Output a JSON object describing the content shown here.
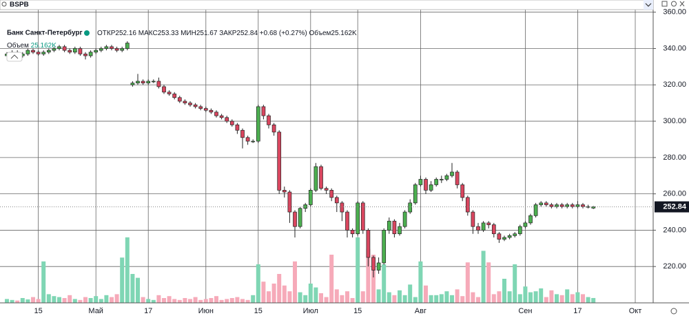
{
  "header": {
    "symbol": "BSPB"
  },
  "chart_data": {
    "type": "candlestick",
    "title": "Банк Санкт-Петербург",
    "legend": {
      "open": "ОТКР",
      "high": "МАКС",
      "low": "МИН",
      "close": "ЗАКР",
      "change": "+0.68 (+0.27%)",
      "volume": "Объем",
      "volume_value": "25.162K"
    },
    "categories": [
      null,
      null,
      null,
      null,
      null,
      null,
      "15",
      null,
      null,
      null,
      null,
      null,
      null,
      null,
      null,
      null,
      null,
      "Май",
      null,
      null,
      null,
      null,
      null,
      null,
      null,
      null,
      null,
      "17",
      null,
      null,
      null,
      null,
      null,
      null,
      null,
      null,
      null,
      null,
      "Июн",
      null,
      null,
      null,
      null,
      null,
      null,
      null,
      null,
      null,
      "15",
      null,
      null,
      null,
      null,
      null,
      null,
      null,
      null,
      null,
      "Июл",
      null,
      null,
      null,
      null,
      null,
      null,
      null,
      null,
      "15",
      null,
      null,
      null,
      null,
      null,
      null,
      null,
      null,
      null,
      null,
      null,
      "Авг",
      null,
      null,
      null,
      null,
      null,
      null,
      null,
      null,
      null,
      null,
      null,
      null,
      null,
      null,
      null,
      null,
      null,
      null,
      null,
      "Сен",
      null,
      null,
      null,
      null,
      null,
      null,
      null,
      null,
      null,
      "17",
      null,
      null,
      null,
      null,
      null,
      null,
      null,
      null,
      null,
      null,
      "Окт"
    ],
    "open": [
      336,
      337,
      338,
      336,
      337,
      339,
      338,
      337,
      338,
      339,
      340,
      341,
      339,
      338,
      340,
      337,
      336,
      338,
      339,
      340,
      341,
      340,
      339,
      340,
      320,
      321,
      322,
      321,
      322,
      322,
      319,
      316,
      315,
      313,
      311,
      310,
      309,
      308,
      307,
      306,
      305,
      303,
      302,
      300,
      298,
      295,
      291,
      289,
      289,
      308,
      303,
      298,
      294,
      262,
      261,
      250,
      242,
      252,
      254,
      262,
      275,
      263,
      262,
      258,
      255,
      250,
      240,
      238,
      255,
      240,
      225,
      218,
      222,
      240,
      245,
      238,
      242,
      250,
      255,
      265,
      268,
      262,
      265,
      268,
      268,
      270,
      272,
      265,
      258,
      250,
      242,
      240,
      244,
      243,
      238,
      235,
      236,
      237,
      238,
      242,
      244,
      248,
      254,
      255,
      254,
      253,
      254,
      253,
      254,
      253,
      254,
      253,
      252.16,
      null,
      null,
      null,
      null,
      null,
      null,
      null,
      null
    ],
    "high": [
      338,
      339,
      339,
      338,
      340,
      340,
      339,
      339,
      340,
      341,
      342,
      342,
      340,
      341,
      341,
      338,
      339,
      340,
      341,
      342,
      342,
      341,
      341,
      344,
      322,
      326,
      323,
      323,
      323,
      324,
      320,
      317,
      316,
      314,
      312,
      311,
      310,
      309,
      308,
      307,
      306,
      304,
      303,
      301,
      299,
      296,
      292,
      290,
      309,
      309,
      304,
      299,
      295,
      264,
      262,
      251,
      253,
      255,
      263,
      277,
      276,
      264,
      263,
      259,
      256,
      251,
      241,
      256,
      256,
      241,
      226,
      225,
      241,
      247,
      246,
      244,
      251,
      257,
      266,
      270,
      269,
      267,
      269,
      270,
      271,
      277,
      273,
      266,
      259,
      251,
      244,
      245,
      245,
      244,
      239,
      237,
      238,
      239,
      243,
      245,
      249,
      255,
      256,
      256,
      255,
      255,
      255,
      255,
      255,
      256,
      255,
      254,
      253.33,
      null,
      null,
      null,
      null,
      null,
      null,
      null,
      null
    ],
    "low": [
      335,
      336,
      335,
      335,
      336,
      337,
      336,
      336,
      337,
      338,
      339,
      338,
      337,
      337,
      336,
      334,
      335,
      337,
      338,
      339,
      339,
      338,
      338,
      339,
      319,
      320,
      320,
      320,
      321,
      318,
      315,
      314,
      312,
      310,
      309,
      308,
      307,
      306,
      305,
      304,
      302,
      301,
      299,
      297,
      293,
      285,
      287,
      288,
      288,
      301,
      296,
      292,
      260,
      258,
      244,
      236,
      241,
      250,
      253,
      261,
      262,
      260,
      256,
      250,
      245,
      236,
      236,
      237,
      238,
      220,
      214,
      216,
      221,
      238,
      236,
      237,
      241,
      249,
      254,
      264,
      260,
      261,
      264,
      266,
      267,
      269,
      263,
      256,
      248,
      238,
      238,
      239,
      241,
      236,
      233,
      234,
      235,
      236,
      237,
      241,
      243,
      247,
      253,
      253,
      252,
      252,
      252,
      252,
      252,
      252,
      252,
      252,
      251.67,
      null,
      null,
      null,
      null,
      null,
      null,
      null,
      null
    ],
    "close": [
      337,
      338,
      336,
      337,
      339,
      338,
      337,
      338,
      339,
      340,
      341,
      339,
      338,
      340,
      337,
      336,
      338,
      339,
      340,
      341,
      340,
      339,
      340,
      343,
      321,
      322,
      321,
      322,
      322,
      319,
      316,
      315,
      313,
      311,
      310,
      309,
      308,
      307,
      306,
      305,
      303,
      302,
      300,
      298,
      295,
      291,
      289,
      289,
      308,
      303,
      298,
      294,
      262,
      261,
      250,
      242,
      252,
      254,
      262,
      275,
      263,
      262,
      258,
      255,
      250,
      240,
      238,
      255,
      240,
      225,
      218,
      222,
      240,
      245,
      238,
      242,
      250,
      255,
      265,
      268,
      262,
      265,
      268,
      268,
      270,
      272,
      265,
      258,
      250,
      242,
      240,
      244,
      243,
      238,
      235,
      236,
      237,
      238,
      242,
      244,
      248,
      254,
      255,
      254,
      253,
      254,
      253,
      254,
      253,
      254,
      253,
      253,
      252.84,
      null,
      null,
      null,
      null,
      null,
      null,
      null,
      null
    ],
    "volume": [
      20,
      15,
      12,
      25,
      18,
      30,
      20,
      215,
      45,
      35,
      30,
      25,
      40,
      20,
      15,
      30,
      25,
      35,
      20,
      40,
      30,
      45,
      235,
      340,
      150,
      130,
      30,
      20,
      15,
      40,
      25,
      35,
      20,
      15,
      25,
      20,
      30,
      15,
      20,
      25,
      35,
      15,
      20,
      25,
      30,
      20,
      15,
      40,
      200,
      110,
      60,
      100,
      150,
      90,
      60,
      215,
      55,
      40,
      100,
      80,
      50,
      30,
      250,
      70,
      40,
      60,
      25,
      340,
      60,
      280,
      250,
      70,
      200,
      55,
      40,
      65,
      40,
      95,
      30,
      215,
      90,
      40,
      40,
      45,
      60,
      40,
      70,
      35,
      210,
      55,
      30,
      270,
      210,
      45,
      60,
      125,
      60,
      200,
      45,
      85,
      55,
      60,
      75,
      30,
      65,
      45,
      40,
      70,
      45,
      55,
      45,
      30,
      25.162,
      null,
      null,
      null,
      null,
      null,
      null,
      null,
      null
    ],
    "up_color": "#4caf50",
    "down_color": "#d9465f",
    "up_volume_color": "#7fd6b4",
    "down_volume_color": "#f6aab9",
    "ylim": [
      200,
      361.4
    ],
    "yticks": [
      {
        "value": 220,
        "label": "220.00"
      },
      {
        "value": 240,
        "label": "240.00"
      },
      {
        "value": 260,
        "label": "260.00"
      },
      {
        "value": 280,
        "label": "280.00"
      },
      {
        "value": 300,
        "label": "300.00"
      },
      {
        "value": 320,
        "label": "320.00"
      },
      {
        "value": 340,
        "label": "340.00"
      },
      {
        "value": 360,
        "label": "360.00"
      }
    ],
    "grid": true
  }
}
